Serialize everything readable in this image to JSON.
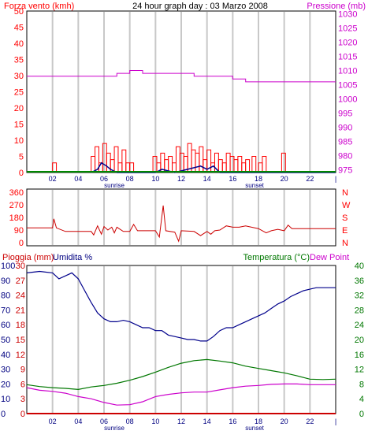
{
  "title": "24 hour graph day : 03 Marzo 2008",
  "colors": {
    "frame": "#000000",
    "grid": "#c8c8c8",
    "wind": "#ff0000",
    "wind_dir": "#cc0000",
    "gust": "#00008b",
    "pressure": "#cc00cc",
    "rain": "#cc0000",
    "humidity": "#00008b",
    "temperature": "#007700",
    "dew_point": "#cc00cc",
    "green_base": "#008800"
  },
  "x_axis": {
    "ticks": [
      "02",
      "04",
      "06",
      "08",
      "10",
      "12",
      "14",
      "16",
      "18",
      "20",
      "22",
      "|"
    ],
    "tick_hours": [
      2,
      4,
      6,
      8,
      10,
      12,
      14,
      16,
      18,
      20,
      22,
      24
    ],
    "sunrise_label": "sunrise",
    "sunset_label": "sunset",
    "sunrise_hour": 6.8,
    "sunset_hour": 17.7,
    "range": [
      0,
      24
    ]
  },
  "chart_data": [
    {
      "type": "line",
      "name": "wind-pressure",
      "left_axis_label": "Forza vento (kmh)",
      "right_axis_label": "Pressione (mb)",
      "left_ticks": [
        "50",
        "45",
        "40",
        "35",
        "30",
        "25",
        "20",
        "15",
        "10",
        "5",
        "0"
      ],
      "right_ticks": [
        "1030",
        "1025",
        "1020",
        "1015",
        "1010",
        "1005",
        "1000",
        "995",
        "990",
        "985",
        "980",
        "975"
      ],
      "ylim_left": [
        0,
        50
      ],
      "ylim_right": [
        974,
        1031
      ],
      "pressure": [
        [
          0,
          1008
        ],
        [
          2,
          1008
        ],
        [
          4,
          1008
        ],
        [
          6,
          1008
        ],
        [
          7,
          1009
        ],
        [
          8,
          1010
        ],
        [
          9,
          1009
        ],
        [
          12,
          1009
        ],
        [
          13,
          1008
        ],
        [
          16,
          1007
        ],
        [
          17,
          1006
        ],
        [
          24,
          1006
        ]
      ],
      "wind_segments": [
        [
          2.0,
          2.3,
          3
        ],
        [
          5.0,
          5.3,
          5
        ],
        [
          5.3,
          5.6,
          8
        ],
        [
          5.6,
          5.9,
          3
        ],
        [
          5.9,
          6.2,
          9
        ],
        [
          6.2,
          6.5,
          6
        ],
        [
          6.5,
          6.8,
          4
        ],
        [
          6.8,
          7.1,
          8
        ],
        [
          7.1,
          7.4,
          3
        ],
        [
          7.4,
          7.7,
          7
        ],
        [
          7.7,
          8.0,
          3
        ],
        [
          8.0,
          8.3,
          3
        ],
        [
          9.8,
          10.1,
          5
        ],
        [
          10.1,
          10.4,
          3
        ],
        [
          10.4,
          10.7,
          6
        ],
        [
          10.7,
          11.0,
          4
        ],
        [
          11.0,
          11.3,
          5
        ],
        [
          11.3,
          11.6,
          3
        ],
        [
          11.6,
          11.9,
          8
        ],
        [
          11.9,
          12.2,
          6
        ],
        [
          12.2,
          12.5,
          5
        ],
        [
          12.5,
          12.8,
          9
        ],
        [
          12.8,
          13.1,
          7
        ],
        [
          13.1,
          13.4,
          6
        ],
        [
          13.4,
          13.7,
          8
        ],
        [
          13.7,
          14.0,
          4
        ],
        [
          14.0,
          14.3,
          7
        ],
        [
          14.3,
          14.6,
          3
        ],
        [
          14.6,
          14.9,
          6
        ],
        [
          14.9,
          15.2,
          4
        ],
        [
          15.2,
          15.5,
          3
        ],
        [
          15.5,
          15.8,
          6
        ],
        [
          15.8,
          16.1,
          5
        ],
        [
          16.1,
          16.4,
          4
        ],
        [
          16.4,
          16.7,
          5
        ],
        [
          16.7,
          17.0,
          3
        ],
        [
          17.0,
          17.3,
          4
        ],
        [
          17.5,
          17.8,
          5
        ],
        [
          18.0,
          18.3,
          3
        ],
        [
          18.3,
          18.6,
          5
        ],
        [
          19.8,
          20.1,
          6
        ]
      ],
      "gust": [
        [
          5.0,
          0
        ],
        [
          5.5,
          1
        ],
        [
          5.8,
          3
        ],
        [
          6.2,
          2
        ],
        [
          6.5,
          1
        ],
        [
          7.0,
          0
        ],
        [
          10.0,
          0
        ],
        [
          10.5,
          1
        ],
        [
          11.5,
          0
        ],
        [
          12.5,
          1
        ],
        [
          13.5,
          2
        ],
        [
          14.0,
          1
        ],
        [
          14.5,
          2
        ],
        [
          15.0,
          0
        ],
        [
          24,
          0
        ]
      ]
    },
    {
      "type": "line",
      "name": "wind-direction",
      "left_ticks": [
        "360",
        "270",
        "180",
        "90",
        "0"
      ],
      "right_labels": [
        "N",
        "W",
        "S",
        "E",
        "N"
      ],
      "ylim": [
        0,
        360
      ],
      "direction": [
        [
          0,
          105
        ],
        [
          2,
          105
        ],
        [
          2.1,
          170
        ],
        [
          2.3,
          105
        ],
        [
          3,
          80
        ],
        [
          5,
          80
        ],
        [
          5.2,
          55
        ],
        [
          5.5,
          120
        ],
        [
          5.8,
          60
        ],
        [
          6.0,
          115
        ],
        [
          6.3,
          90
        ],
        [
          6.6,
          110
        ],
        [
          6.8,
          70
        ],
        [
          7.0,
          110
        ],
        [
          7.5,
          80
        ],
        [
          8.0,
          80
        ],
        [
          8.3,
          130
        ],
        [
          8.6,
          85
        ],
        [
          10,
          85
        ],
        [
          10.3,
          40
        ],
        [
          10.6,
          265
        ],
        [
          10.8,
          85
        ],
        [
          11.5,
          75
        ],
        [
          11.8,
          10
        ],
        [
          12.0,
          85
        ],
        [
          13,
          80
        ],
        [
          13.5,
          50
        ],
        [
          14.0,
          80
        ],
        [
          14.3,
          60
        ],
        [
          14.6,
          85
        ],
        [
          15,
          90
        ],
        [
          15.5,
          120
        ],
        [
          16,
          110
        ],
        [
          16.5,
          110
        ],
        [
          17,
          120
        ],
        [
          18,
          100
        ],
        [
          18.6,
          70
        ],
        [
          19,
          85
        ],
        [
          19.5,
          95
        ],
        [
          20.0,
          85
        ],
        [
          20.3,
          125
        ],
        [
          20.6,
          100
        ],
        [
          24,
          100
        ]
      ]
    },
    {
      "type": "line",
      "name": "rain-humidity-temperature",
      "left_label_rain": "Pioggia (mm)",
      "left_label_humidity": "Umidita %",
      "right_label_temp": "Temperatura (°C)",
      "right_label_dew": "Dew Point",
      "humidity_ticks": [
        "100",
        "90",
        "80",
        "70",
        "60",
        "50",
        "40",
        "30",
        "20",
        "10",
        "0"
      ],
      "rain_ticks": [
        "30",
        "27",
        "24",
        "21",
        "18",
        "15",
        "12",
        "9",
        "6",
        "3",
        "0"
      ],
      "temp_ticks": [
        "40",
        "36",
        "32",
        "28",
        "24",
        "20",
        "16",
        "12",
        "8",
        "4",
        "0"
      ],
      "ylim_humidity": [
        0,
        100
      ],
      "ylim_rain": [
        0,
        30
      ],
      "ylim_temp": [
        0,
        40
      ],
      "humidity": [
        [
          0,
          95
        ],
        [
          1,
          96
        ],
        [
          2,
          95
        ],
        [
          2.5,
          91
        ],
        [
          3.0,
          93
        ],
        [
          3.5,
          95
        ],
        [
          4.0,
          91
        ],
        [
          4.5,
          83
        ],
        [
          5.0,
          75
        ],
        [
          5.5,
          68
        ],
        [
          6.0,
          64
        ],
        [
          6.5,
          62
        ],
        [
          7.0,
          62
        ],
        [
          7.5,
          63
        ],
        [
          8.0,
          62
        ],
        [
          8.5,
          60
        ],
        [
          9.0,
          58
        ],
        [
          9.5,
          58
        ],
        [
          10.0,
          56
        ],
        [
          10.5,
          56
        ],
        [
          11.0,
          53
        ],
        [
          11.5,
          52
        ],
        [
          12.0,
          51
        ],
        [
          12.5,
          50
        ],
        [
          13.0,
          50
        ],
        [
          13.5,
          49
        ],
        [
          14.0,
          49
        ],
        [
          14.5,
          52
        ],
        [
          15.0,
          56
        ],
        [
          15.5,
          58
        ],
        [
          16.0,
          58
        ],
        [
          16.5,
          60
        ],
        [
          17.0,
          62
        ],
        [
          17.5,
          64
        ],
        [
          18.0,
          66
        ],
        [
          18.5,
          68
        ],
        [
          19.0,
          71
        ],
        [
          19.5,
          74
        ],
        [
          20.0,
          76
        ],
        [
          20.5,
          79
        ],
        [
          21.0,
          81
        ],
        [
          21.5,
          83
        ],
        [
          22.0,
          84
        ],
        [
          22.5,
          85
        ],
        [
          23.0,
          85
        ],
        [
          23.5,
          85
        ],
        [
          24.0,
          85
        ]
      ],
      "temperature": [
        [
          0,
          7.8
        ],
        [
          1,
          7.3
        ],
        [
          2,
          7.0
        ],
        [
          3,
          6.8
        ],
        [
          4,
          6.5
        ],
        [
          5,
          7.2
        ],
        [
          6,
          7.6
        ],
        [
          7,
          8.2
        ],
        [
          8,
          9.0
        ],
        [
          9,
          10.0
        ],
        [
          10,
          11.2
        ],
        [
          11,
          12.5
        ],
        [
          12,
          13.6
        ],
        [
          13,
          14.3
        ],
        [
          14,
          14.6
        ],
        [
          15,
          14.2
        ],
        [
          16,
          13.7
        ],
        [
          17,
          12.8
        ],
        [
          18,
          12.2
        ],
        [
          19,
          11.6
        ],
        [
          20,
          11.0
        ],
        [
          21,
          10.2
        ],
        [
          22,
          9.3
        ],
        [
          23,
          9.2
        ],
        [
          24,
          9.3
        ]
      ],
      "dew_point": [
        [
          0,
          7.0
        ],
        [
          1,
          6.3
        ],
        [
          2,
          6.0
        ],
        [
          3,
          5.5
        ],
        [
          4,
          4.6
        ],
        [
          5,
          4.0
        ],
        [
          6,
          3.0
        ],
        [
          7,
          2.3
        ],
        [
          8,
          2.4
        ],
        [
          9,
          3.2
        ],
        [
          10,
          4.6
        ],
        [
          11,
          5.2
        ],
        [
          12,
          5.6
        ],
        [
          13,
          5.8
        ],
        [
          14,
          5.8
        ],
        [
          15,
          6.4
        ],
        [
          16,
          7.0
        ],
        [
          17,
          7.4
        ],
        [
          18,
          7.6
        ],
        [
          19,
          7.9
        ],
        [
          20,
          8.0
        ],
        [
          21,
          8.0
        ],
        [
          22,
          7.8
        ],
        [
          23,
          7.8
        ],
        [
          24,
          7.8
        ]
      ],
      "rain": [
        [
          0,
          0
        ],
        [
          24,
          0
        ]
      ]
    }
  ]
}
